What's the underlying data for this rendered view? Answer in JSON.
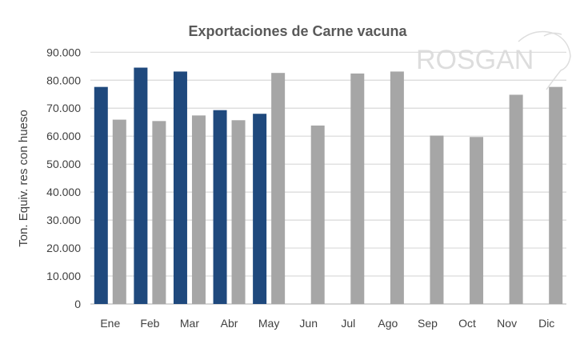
{
  "chart_data": {
    "type": "bar",
    "title": "Exportaciones de Carne vacuna",
    "xlabel": "",
    "ylabel": "Ton. Equiv. res con hueso",
    "ylim": [
      0,
      90000
    ],
    "yticks": [
      "0",
      "10.000",
      "20.000",
      "30.000",
      "40.000",
      "50.000",
      "60.000",
      "70.000",
      "80.000",
      "90.000"
    ],
    "categories": [
      "Ene",
      "Feb",
      "Mar",
      "Abr",
      "May",
      "Jun",
      "Jul",
      "Ago",
      "Sep",
      "Oct",
      "Nov",
      "Dic"
    ],
    "series": [
      {
        "color": "#1f497d",
        "values": [
          77600,
          84500,
          83100,
          69300,
          68000,
          null,
          null,
          null,
          null,
          null,
          null,
          null
        ]
      },
      {
        "color": "#a6a6a6",
        "values": [
          65900,
          65400,
          67400,
          65700,
          82600,
          63800,
          82400,
          83100,
          60200,
          59700,
          74800,
          77600
        ]
      }
    ],
    "grid": true,
    "legend": "none",
    "logo_text": "ROSGAN"
  }
}
